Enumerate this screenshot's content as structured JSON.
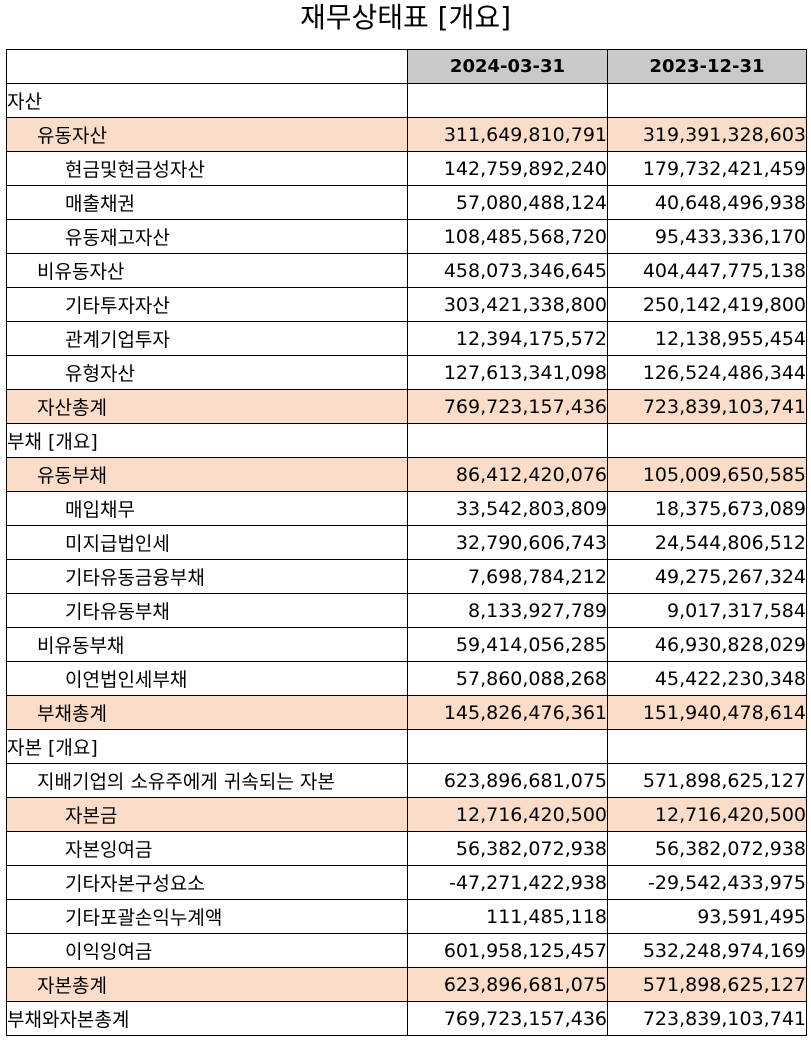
{
  "title": "재무상태표 [개요]",
  "columns": [
    "2024-03-31",
    "2023-12-31"
  ],
  "colors": {
    "highlight": "#fbdcc9",
    "header": "#c9c9c9"
  },
  "rows": [
    {
      "label": "자산",
      "level": 0,
      "highlight": false,
      "v1": "",
      "v2": ""
    },
    {
      "label": "유동자산",
      "level": 1,
      "highlight": true,
      "v1": "311,649,810,791",
      "v2": "319,391,328,603"
    },
    {
      "label": "현금및현금성자산",
      "level": 2,
      "highlight": false,
      "v1": "142,759,892,240",
      "v2": "179,732,421,459"
    },
    {
      "label": "매출채권",
      "level": 2,
      "highlight": false,
      "v1": "57,080,488,124",
      "v2": "40,648,496,938"
    },
    {
      "label": "유동재고자산",
      "level": 2,
      "highlight": false,
      "v1": "108,485,568,720",
      "v2": "95,433,336,170"
    },
    {
      "label": "비유동자산",
      "level": 1,
      "highlight": false,
      "v1": "458,073,346,645",
      "v2": "404,447,775,138"
    },
    {
      "label": "기타투자자산",
      "level": 2,
      "highlight": false,
      "v1": "303,421,338,800",
      "v2": "250,142,419,800"
    },
    {
      "label": "관계기업투자",
      "level": 2,
      "highlight": false,
      "v1": "12,394,175,572",
      "v2": "12,138,955,454"
    },
    {
      "label": "유형자산",
      "level": 2,
      "highlight": false,
      "v1": "127,613,341,098",
      "v2": "126,524,486,344"
    },
    {
      "label": "자산총계",
      "level": 1,
      "highlight": true,
      "v1": "769,723,157,436",
      "v2": "723,839,103,741"
    },
    {
      "label": "부채 [개요]",
      "level": 0,
      "highlight": false,
      "v1": "",
      "v2": ""
    },
    {
      "label": "유동부채",
      "level": 1,
      "highlight": true,
      "v1": "86,412,420,076",
      "v2": "105,009,650,585"
    },
    {
      "label": "매입채무",
      "level": 2,
      "highlight": false,
      "v1": "33,542,803,809",
      "v2": "18,375,673,089"
    },
    {
      "label": "미지급법인세",
      "level": 2,
      "highlight": false,
      "v1": "32,790,606,743",
      "v2": "24,544,806,512"
    },
    {
      "label": "기타유동금융부채",
      "level": 2,
      "highlight": false,
      "v1": "7,698,784,212",
      "v2": "49,275,267,324"
    },
    {
      "label": "기타유동부채",
      "level": 2,
      "highlight": false,
      "v1": "8,133,927,789",
      "v2": "9,017,317,584"
    },
    {
      "label": "비유동부채",
      "level": 1,
      "highlight": false,
      "v1": "59,414,056,285",
      "v2": "46,930,828,029"
    },
    {
      "label": "이연법인세부채",
      "level": 2,
      "highlight": false,
      "v1": "57,860,088,268",
      "v2": "45,422,230,348"
    },
    {
      "label": "부채총계",
      "level": 1,
      "highlight": true,
      "v1": "145,826,476,361",
      "v2": "151,940,478,614"
    },
    {
      "label": "자본 [개요]",
      "level": 0,
      "highlight": false,
      "v1": "",
      "v2": ""
    },
    {
      "label": "지배기업의 소유주에게 귀속되는 자본",
      "level": 1,
      "highlight": false,
      "v1": "623,896,681,075",
      "v2": "571,898,625,127"
    },
    {
      "label": "자본금",
      "level": 2,
      "highlight": true,
      "v1": "12,716,420,500",
      "v2": "12,716,420,500"
    },
    {
      "label": "자본잉여금",
      "level": 2,
      "highlight": false,
      "v1": "56,382,072,938",
      "v2": "56,382,072,938"
    },
    {
      "label": "기타자본구성요소",
      "level": 2,
      "highlight": false,
      "v1": "-47,271,422,938",
      "v2": "-29,542,433,975"
    },
    {
      "label": "기타포괄손익누계액",
      "level": 2,
      "highlight": false,
      "v1": "111,485,118",
      "v2": "93,591,495"
    },
    {
      "label": "이익잉여금",
      "level": 2,
      "highlight": false,
      "v1": "601,958,125,457",
      "v2": "532,248,974,169"
    },
    {
      "label": "자본총계",
      "level": 1,
      "highlight": true,
      "v1": "623,896,681,075",
      "v2": "571,898,625,127"
    },
    {
      "label": "부채와자본총계",
      "level": 0,
      "highlight": false,
      "v1": "769,723,157,436",
      "v2": "723,839,103,741"
    }
  ]
}
